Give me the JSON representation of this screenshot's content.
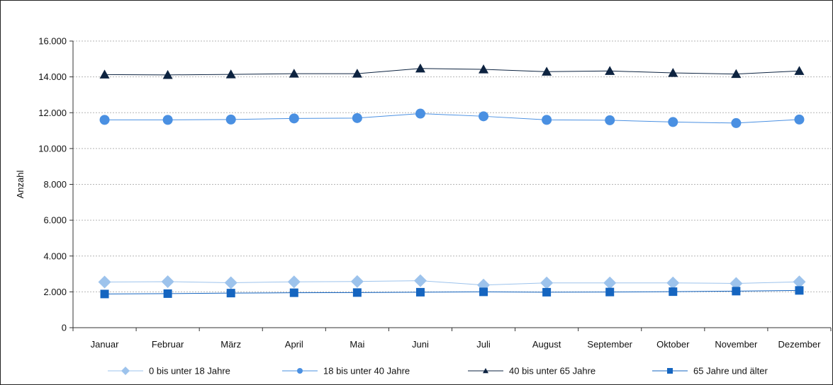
{
  "chart_data": {
    "type": "line",
    "title": "",
    "xlabel": "",
    "ylabel": "Anzahl",
    "ylim": [
      0,
      16000
    ],
    "yticks": [
      0,
      2000,
      4000,
      6000,
      8000,
      10000,
      12000,
      14000,
      16000
    ],
    "ytick_labels": [
      "0",
      "2.000",
      "4.000",
      "6.000",
      "8.000",
      "10.000",
      "12.000",
      "14.000",
      "16.000"
    ],
    "grid": "horizontal-dotted",
    "legend_position": "bottom",
    "categories": [
      "Januar",
      "Februar",
      "März",
      "April",
      "Mai",
      "Juni",
      "Juli",
      "August",
      "September",
      "Oktober",
      "November",
      "Dezember"
    ],
    "series": [
      {
        "name": "0 bis unter 18 Jahre",
        "marker": "diamond",
        "color": "#9dc3ec",
        "markerSize": 9,
        "values": [
          2550,
          2570,
          2510,
          2560,
          2580,
          2620,
          2380,
          2500,
          2500,
          2500,
          2470,
          2560
        ]
      },
      {
        "name": "18 bis unter 40 Jahre",
        "marker": "circle",
        "color": "#4a90e2",
        "markerSize": 7,
        "values": [
          11600,
          11600,
          11620,
          11680,
          11700,
          11950,
          11800,
          11600,
          11580,
          11480,
          11420,
          11620
        ]
      },
      {
        "name": "40 bis unter 65 Jahre",
        "marker": "triangle",
        "color": "#0d2340",
        "markerSize": 7,
        "values": [
          14130,
          14110,
          14140,
          14180,
          14180,
          14470,
          14420,
          14290,
          14330,
          14220,
          14160,
          14330
        ]
      },
      {
        "name": "65 Jahre und älter",
        "marker": "square",
        "color": "#1565c0",
        "markerSize": 6,
        "values": [
          1880,
          1900,
          1930,
          1950,
          1960,
          1980,
          2000,
          1980,
          1990,
          2010,
          2040,
          2080
        ]
      }
    ]
  }
}
